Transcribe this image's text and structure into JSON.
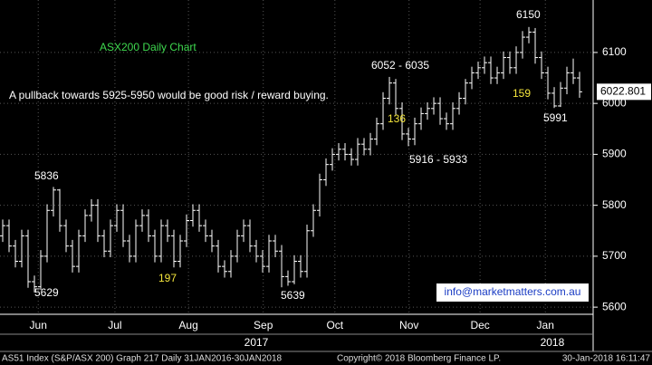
{
  "chart_data": {
    "type": "ohlc",
    "title": "ASX200 Daily Chart",
    "subtitle": "A pullback towards 5925-5950 would be good risk / reward buying.",
    "open": [
      5740,
      5760,
      5720,
      5690,
      5740,
      5650,
      5640,
      5700,
      5790,
      5830,
      5760,
      5720,
      5680,
      5740,
      5780,
      5800,
      5740,
      5710,
      5760,
      5790,
      5730,
      5700,
      5760,
      5780,
      5740,
      5700,
      5760,
      5740,
      5690,
      5730,
      5770,
      5790,
      5760,
      5740,
      5720,
      5680,
      5670,
      5700,
      5740,
      5760,
      5720,
      5700,
      5680,
      5730,
      5710,
      5660,
      5650,
      5690,
      5670,
      5750,
      5790,
      5850,
      5880,
      5900,
      5910,
      5900,
      5890,
      5920,
      5910,
      5930,
      5960,
      6010,
      6040,
      5990,
      5940,
      5930,
      5960,
      5980,
      5990,
      6000,
      5970,
      5960,
      5990,
      6010,
      6040,
      6060,
      6070,
      6080,
      6050,
      6060,
      6090,
      6070,
      6100,
      6130,
      6140,
      6090,
      6060,
      6020,
      5995,
      6030,
      6060,
      6050
    ],
    "high": [
      5772,
      5772,
      5732,
      5752,
      5752,
      5662,
      5712,
      5802,
      5836,
      5832,
      5772,
      5732,
      5752,
      5792,
      5812,
      5812,
      5752,
      5772,
      5802,
      5802,
      5742,
      5772,
      5792,
      5792,
      5752,
      5772,
      5772,
      5752,
      5742,
      5782,
      5802,
      5802,
      5772,
      5752,
      5732,
      5692,
      5712,
      5752,
      5772,
      5772,
      5732,
      5712,
      5742,
      5742,
      5722,
      5672,
      5702,
      5702,
      5762,
      5802,
      5862,
      5892,
      5912,
      5922,
      5922,
      5912,
      5932,
      5932,
      5942,
      5972,
      6022,
      6052,
      6048,
      6002,
      5952,
      5972,
      5992,
      6002,
      6012,
      6012,
      5982,
      6002,
      6022,
      6048,
      6072,
      6082,
      6092,
      6092,
      6072,
      6102,
      6102,
      6112,
      6142,
      6150,
      6148,
      6102,
      6072,
      6032,
      6042,
      6072,
      6088,
      6062
    ],
    "low": [
      5728,
      5708,
      5678,
      5678,
      5638,
      5629,
      5634,
      5688,
      5778,
      5748,
      5708,
      5668,
      5668,
      5728,
      5768,
      5728,
      5698,
      5698,
      5748,
      5718,
      5688,
      5688,
      5748,
      5728,
      5688,
      5688,
      5728,
      5678,
      5678,
      5718,
      5758,
      5748,
      5728,
      5708,
      5668,
      5658,
      5658,
      5688,
      5728,
      5708,
      5688,
      5668,
      5668,
      5698,
      5639,
      5642,
      5645,
      5658,
      5658,
      5738,
      5778,
      5838,
      5868,
      5888,
      5888,
      5878,
      5878,
      5898,
      5898,
      5918,
      5948,
      5998,
      5978,
      5928,
      5916,
      5918,
      5948,
      5968,
      5978,
      5958,
      5948,
      5948,
      5978,
      5998,
      6028,
      6048,
      6058,
      6038,
      6038,
      6048,
      6058,
      6058,
      6088,
      6118,
      6078,
      6048,
      6008,
      5991,
      5993,
      6018,
      6038,
      6011
    ],
    "close": [
      5760,
      5720,
      5690,
      5740,
      5650,
      5640,
      5700,
      5790,
      5830,
      5760,
      5720,
      5680,
      5740,
      5780,
      5800,
      5740,
      5710,
      5760,
      5790,
      5730,
      5700,
      5760,
      5780,
      5740,
      5700,
      5760,
      5740,
      5690,
      5730,
      5770,
      5790,
      5760,
      5740,
      5720,
      5680,
      5670,
      5700,
      5740,
      5760,
      5720,
      5700,
      5680,
      5730,
      5710,
      5660,
      5650,
      5690,
      5670,
      5750,
      5790,
      5850,
      5880,
      5900,
      5910,
      5900,
      5890,
      5920,
      5910,
      5930,
      5960,
      6010,
      6040,
      5990,
      5940,
      5930,
      5960,
      5980,
      5990,
      6000,
      5970,
      5960,
      5990,
      6010,
      6040,
      6060,
      6070,
      6080,
      6050,
      6060,
      6090,
      6070,
      6100,
      6130,
      6140,
      6090,
      6060,
      6020,
      5995,
      6030,
      6060,
      6050,
      6022.801
    ],
    "color": "#ffffff",
    "xlim": [
      -0.43,
      93.14
    ],
    "xticks": [
      {
        "value": 5.6,
        "label": "Jun"
      },
      {
        "value": 17.7,
        "label": "Jul"
      },
      {
        "value": 29.3,
        "label": "Aug"
      },
      {
        "value": 41.1,
        "label": "Sep"
      },
      {
        "value": 52.4,
        "label": "Oct"
      },
      {
        "value": 64.1,
        "label": "Nov"
      },
      {
        "value": 75.3,
        "label": "Dec"
      },
      {
        "value": 85.6,
        "label": "Jan"
      }
    ],
    "year_ticks": [
      {
        "value": 40,
        "label": "2017"
      },
      {
        "value": 86.7,
        "label": "2018"
      }
    ],
    "ylim": [
      5586,
      6203
    ],
    "yticks": [
      5600,
      5700,
      5800,
      5900,
      6000,
      6100
    ],
    "grid": true,
    "annotations": [
      "5836",
      "5629",
      "197",
      "5639",
      "6052 - 6035",
      "136",
      "5916 - 5933",
      "6150",
      "159",
      "5991"
    ],
    "contact": "info@marketmatters.com.au",
    "footer": {
      "left": "AS51 Index (S&P/ASX 200) Graph 217  Daily 31JAN2016-30JAN2018",
      "center": "Copyright© 2018 Bloomberg Finance LP.",
      "right": "30-Jan-2018 16:11:47"
    }
  }
}
